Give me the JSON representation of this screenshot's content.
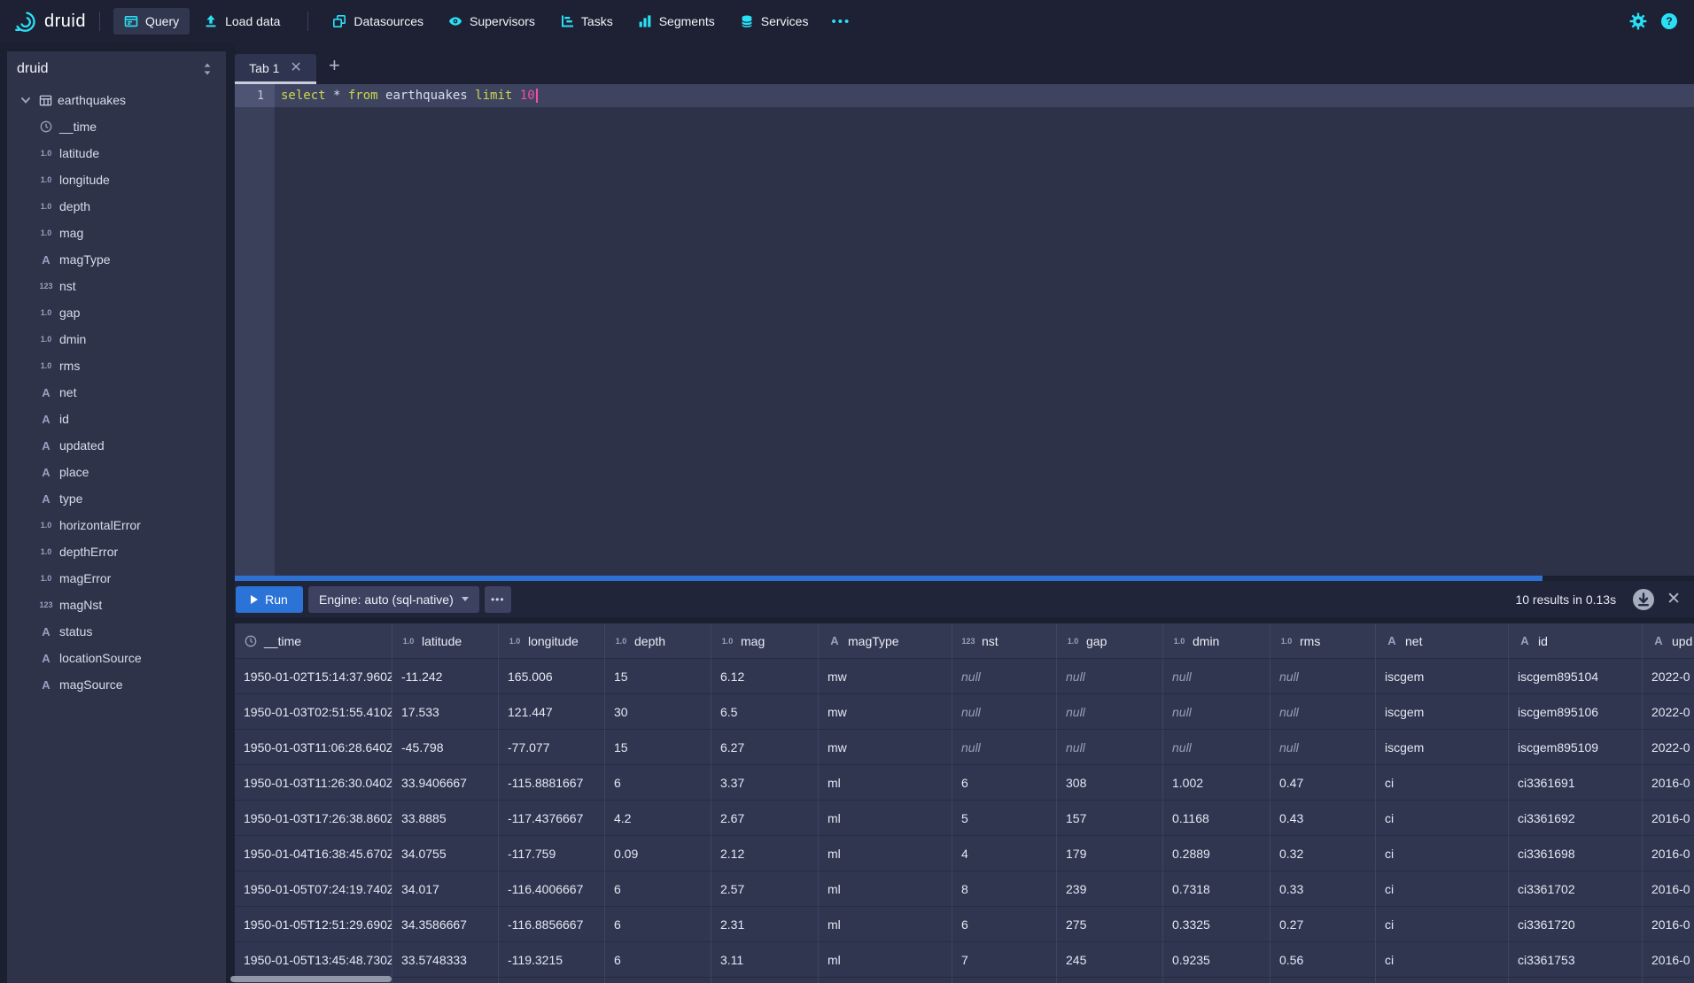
{
  "colors": {
    "accent_cyan": "#2ae0f6",
    "primary_blue": "#2d72d2",
    "sql_keyword": "#ccd64f",
    "sql_number": "#ee4fa4"
  },
  "navbar": {
    "brand": "druid",
    "items": [
      {
        "label": "Query",
        "icon": "query-icon",
        "active": true
      },
      {
        "label": "Load data",
        "icon": "load-data-icon",
        "active": false
      },
      {
        "label": "Datasources",
        "icon": "datasources-icon",
        "active": false,
        "divider_before": true
      },
      {
        "label": "Supervisors",
        "icon": "supervisors-icon",
        "active": false
      },
      {
        "label": "Tasks",
        "icon": "tasks-icon",
        "active": false
      },
      {
        "label": "Segments",
        "icon": "segments-icon",
        "active": false
      },
      {
        "label": "Services",
        "icon": "services-icon",
        "active": false
      }
    ],
    "more_label": "•••"
  },
  "sidebar": {
    "title": "druid",
    "table_name": "earthquakes",
    "columns": [
      {
        "name": "__time",
        "type": "time"
      },
      {
        "name": "latitude",
        "type": "float"
      },
      {
        "name": "longitude",
        "type": "float"
      },
      {
        "name": "depth",
        "type": "float"
      },
      {
        "name": "mag",
        "type": "float"
      },
      {
        "name": "magType",
        "type": "string"
      },
      {
        "name": "nst",
        "type": "int"
      },
      {
        "name": "gap",
        "type": "float"
      },
      {
        "name": "dmin",
        "type": "float"
      },
      {
        "name": "rms",
        "type": "float"
      },
      {
        "name": "net",
        "type": "string"
      },
      {
        "name": "id",
        "type": "string"
      },
      {
        "name": "updated",
        "type": "string"
      },
      {
        "name": "place",
        "type": "string"
      },
      {
        "name": "type",
        "type": "string"
      },
      {
        "name": "horizontalError",
        "type": "float"
      },
      {
        "name": "depthError",
        "type": "float"
      },
      {
        "name": "magError",
        "type": "float"
      },
      {
        "name": "magNst",
        "type": "int"
      },
      {
        "name": "status",
        "type": "string"
      },
      {
        "name": "locationSource",
        "type": "string"
      },
      {
        "name": "magSource",
        "type": "string"
      }
    ]
  },
  "tabs": {
    "active_label": "Tab 1",
    "line_number": "1"
  },
  "editor": {
    "tokens": [
      {
        "type": "keyword",
        "text": "select"
      },
      {
        "type": "plain",
        "text": " * "
      },
      {
        "type": "keyword",
        "text": "from"
      },
      {
        "type": "plain",
        "text": " earthquakes "
      },
      {
        "type": "keyword",
        "text": "limit"
      },
      {
        "type": "plain",
        "text": " "
      },
      {
        "type": "number",
        "text": "10"
      }
    ]
  },
  "run_bar": {
    "run_label": "Run",
    "engine_label": "Engine: auto (sql-native)",
    "more_label": "•••",
    "results_summary": "10 results in 0.13s"
  },
  "results": {
    "columns": [
      {
        "label": "__time",
        "type": "time"
      },
      {
        "label": "latitude",
        "type": "float"
      },
      {
        "label": "longitude",
        "type": "float"
      },
      {
        "label": "depth",
        "type": "float"
      },
      {
        "label": "mag",
        "type": "float"
      },
      {
        "label": "magType",
        "type": "string"
      },
      {
        "label": "nst",
        "type": "int"
      },
      {
        "label": "gap",
        "type": "float"
      },
      {
        "label": "dmin",
        "type": "float"
      },
      {
        "label": "rms",
        "type": "float"
      },
      {
        "label": "net",
        "type": "string"
      },
      {
        "label": "id",
        "type": "string"
      },
      {
        "label": "upd",
        "type": "string"
      }
    ],
    "rows": [
      [
        "1950-01-02T15:14:37.960Z",
        "-11.242",
        "165.006",
        "15",
        "6.12",
        "mw",
        "null",
        "null",
        "null",
        "null",
        "iscgem",
        "iscgem895104",
        "2022-0"
      ],
      [
        "1950-01-03T02:51:55.410Z",
        "17.533",
        "121.447",
        "30",
        "6.5",
        "mw",
        "null",
        "null",
        "null",
        "null",
        "iscgem",
        "iscgem895106",
        "2022-0"
      ],
      [
        "1950-01-03T11:06:28.640Z",
        "-45.798",
        "-77.077",
        "15",
        "6.27",
        "mw",
        "null",
        "null",
        "null",
        "null",
        "iscgem",
        "iscgem895109",
        "2022-0"
      ],
      [
        "1950-01-03T11:26:30.040Z",
        "33.9406667",
        "-115.8881667",
        "6",
        "3.37",
        "ml",
        "6",
        "308",
        "1.002",
        "0.47",
        "ci",
        "ci3361691",
        "2016-0"
      ],
      [
        "1950-01-03T17:26:38.860Z",
        "33.8885",
        "-117.4376667",
        "4.2",
        "2.67",
        "ml",
        "5",
        "157",
        "0.1168",
        "0.43",
        "ci",
        "ci3361692",
        "2016-0"
      ],
      [
        "1950-01-04T16:38:45.670Z",
        "34.0755",
        "-117.759",
        "0.09",
        "2.12",
        "ml",
        "4",
        "179",
        "0.2889",
        "0.32",
        "ci",
        "ci3361698",
        "2016-0"
      ],
      [
        "1950-01-05T07:24:19.740Z",
        "34.017",
        "-116.4006667",
        "6",
        "2.57",
        "ml",
        "8",
        "239",
        "0.7318",
        "0.33",
        "ci",
        "ci3361702",
        "2016-0"
      ],
      [
        "1950-01-05T12:51:29.690Z",
        "34.3586667",
        "-116.8856667",
        "6",
        "2.31",
        "ml",
        "6",
        "275",
        "0.3325",
        "0.27",
        "ci",
        "ci3361720",
        "2016-0"
      ],
      [
        "1950-01-05T13:45:48.730Z",
        "33.5748333",
        "-119.3215",
        "6",
        "3.11",
        "ml",
        "7",
        "245",
        "0.9235",
        "0.56",
        "ci",
        "ci3361753",
        "2016-0"
      ]
    ]
  }
}
